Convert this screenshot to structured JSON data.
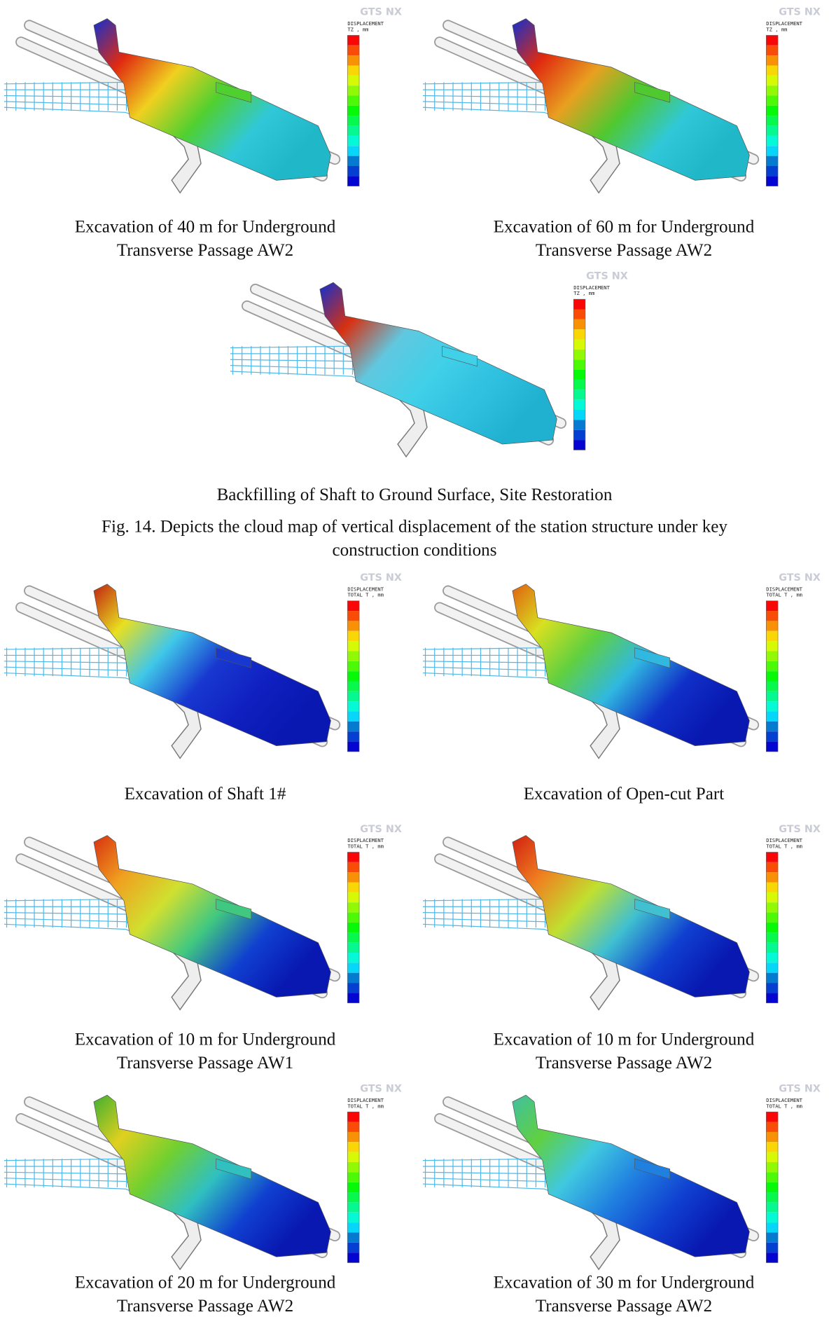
{
  "figure_caption_lines": [
    "Fig. 14. Depicts the cloud map of vertical displacement of the station structure under key",
    "construction conditions"
  ],
  "legend_logo": "GTS NX",
  "panels": [
    {
      "caption_lines": [
        "Excavation of 40 m for Underground",
        "Transverse Passage AW2"
      ],
      "legend_title": "DISPLACEMENT",
      "legend_unit": "TZ , mm"
    },
    {
      "caption_lines": [
        "Excavation of 60 m for Underground",
        "Transverse Passage AW2"
      ],
      "legend_title": "DISPLACEMENT",
      "legend_unit": "TZ , mm"
    },
    {
      "caption_lines": [
        "Backfilling of Shaft to Ground Surface, Site Restoration"
      ],
      "legend_title": "DISPLACEMENT",
      "legend_unit": "TZ , mm"
    },
    {
      "caption_lines": [
        "Excavation of Shaft 1#"
      ],
      "legend_title": "DISPLACEMENT",
      "legend_unit": "TOTAL T , mm"
    },
    {
      "caption_lines": [
        "Excavation of Open-cut Part"
      ],
      "legend_title": "DISPLACEMENT",
      "legend_unit": "TOTAL T , mm"
    },
    {
      "caption_lines": [
        "Excavation of 10 m for Underground",
        "Transverse Passage AW1"
      ],
      "legend_title": "DISPLACEMENT",
      "legend_unit": "TOTAL T , mm"
    },
    {
      "caption_lines": [
        "Excavation of 10 m for Underground",
        "Transverse Passage AW2"
      ],
      "legend_title": "DISPLACEMENT",
      "legend_unit": "TOTAL T , mm"
    },
    {
      "caption_lines": [
        "Excavation of 20 m for Underground",
        "Transverse Passage AW2"
      ],
      "legend_title": "DISPLACEMENT",
      "legend_unit": "TOTAL T , mm"
    },
    {
      "caption_lines": [
        "Excavation of 30 m for Underground",
        "Transverse Passage AW2"
      ],
      "legend_title": "DISPLACEMENT",
      "legend_unit": "TOTAL T , mm"
    }
  ]
}
